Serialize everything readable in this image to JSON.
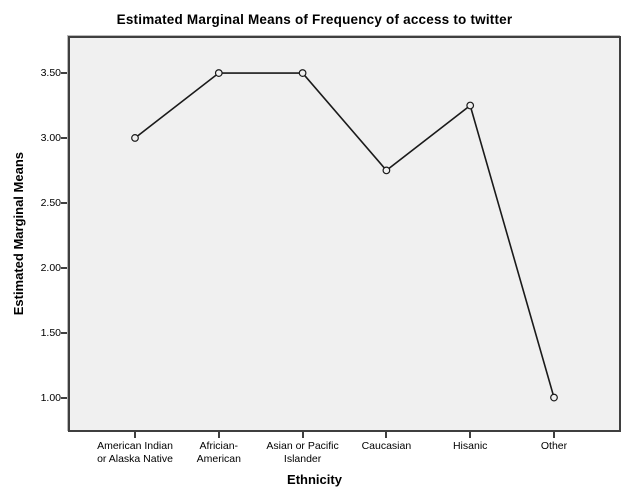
{
  "chart_data": {
    "type": "line",
    "title": "Estimated Marginal Means of Frequency of access to twitter",
    "xlabel": "Ethnicity",
    "ylabel": "Estimated Marginal Means",
    "categories": [
      "American Indian\nor Alaska Native",
      "Africian-\nAmerican",
      "Asian or Pacific\nIslander",
      "Caucasian",
      "Hisanic",
      "Other"
    ],
    "values": [
      3.0,
      3.5,
      3.5,
      2.75,
      3.25,
      1.0
    ],
    "yticks": [
      1.0,
      1.5,
      2.0,
      2.5,
      3.0,
      3.5
    ],
    "ytick_labels": [
      "1.00",
      "1.50",
      "2.00",
      "2.50",
      "3.00",
      "3.50"
    ],
    "ylim": [
      0.75,
      3.77
    ],
    "grid": false,
    "legend": null,
    "marker": "open-circle",
    "colors": {
      "line": "#1a1a1a",
      "marker_stroke": "#1a1a1a",
      "plot_background": "#f0f0f0",
      "frame": "#3f3f3f",
      "page_background": "#ffffff",
      "text": "#000000"
    }
  }
}
